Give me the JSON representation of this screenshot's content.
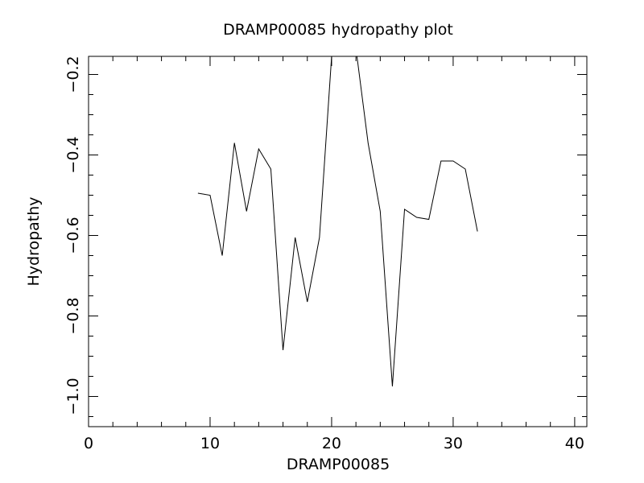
{
  "chart_data": {
    "type": "line",
    "title": "DRAMP00085 hydropathy plot",
    "xlabel": "DRAMP00085",
    "ylabel": "Hydropathy",
    "xlim": [
      0,
      41
    ],
    "ylim": [
      -1.075,
      -0.155
    ],
    "x_major_ticks": [
      0,
      10,
      20,
      30,
      40
    ],
    "x_tick_labels": [
      "0",
      "10",
      "20",
      "30",
      "40"
    ],
    "x_minor_step": 2,
    "y_major_ticks": [
      -1.0,
      -0.8,
      -0.6,
      -0.4,
      -0.2
    ],
    "y_tick_labels": [
      "−1.0",
      "−0.8",
      "−0.6",
      "−0.4",
      "−0.2"
    ],
    "y_minor_step": 0.05,
    "grid": false,
    "series": [
      {
        "x": [
          9,
          10,
          11,
          12,
          13,
          14,
          15,
          16,
          17,
          18,
          19,
          20,
          21,
          22,
          23,
          24,
          25,
          26,
          27,
          28,
          29,
          30,
          31,
          32
        ],
        "y": [
          -0.495,
          -0.5,
          -0.65,
          -0.37,
          -0.54,
          -0.385,
          -0.435,
          -0.885,
          -0.605,
          -0.765,
          -0.605,
          -0.155,
          -0.155,
          -0.135,
          -0.37,
          -0.54,
          -0.975,
          -0.535,
          -0.555,
          -0.56,
          -0.415,
          -0.415,
          -0.435,
          -0.59
        ]
      }
    ]
  }
}
